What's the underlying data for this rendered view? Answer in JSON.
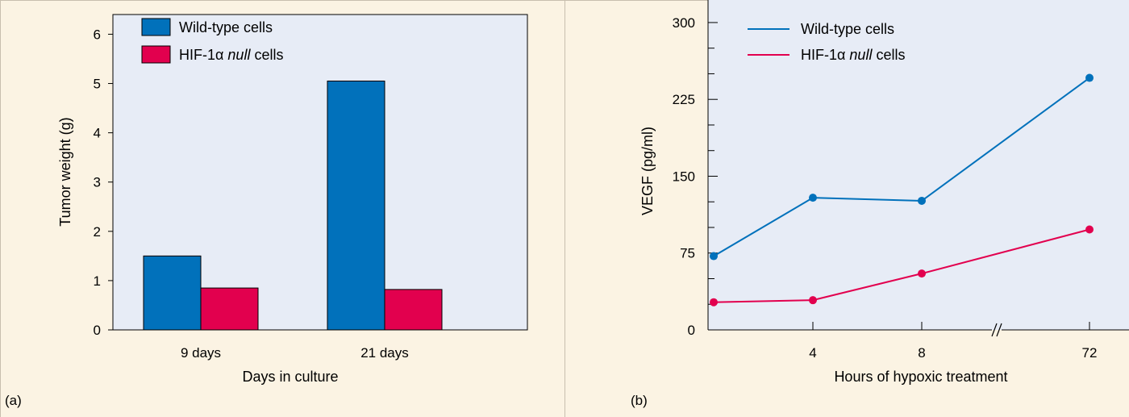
{
  "chart_data": [
    {
      "type": "bar",
      "panel_label": "(a)",
      "categories": [
        "9 days",
        "21 days"
      ],
      "series": [
        {
          "name": "Wild-type cells",
          "values": [
            1.5,
            5.05
          ]
        },
        {
          "name_parts": [
            "HIF-1α ",
            "null",
            " cells"
          ],
          "values": [
            0.85,
            0.82
          ]
        }
      ],
      "xlabel": "Days in culture",
      "ylabel": "Tumor weight (g)",
      "ylim": [
        0,
        6.4
      ],
      "yticks": [
        "0",
        "1",
        "2",
        "3",
        "4",
        "5",
        "6"
      ],
      "legend_position": "top-left",
      "colors": [
        "#0171bb",
        "#e2004e"
      ],
      "plot_background": "#e7ecf6"
    },
    {
      "type": "line",
      "panel_label": "(b)",
      "x": [
        "0",
        "4",
        "8",
        "72"
      ],
      "xticks": [
        "4",
        "8",
        "72"
      ],
      "series": [
        {
          "name": "Wild-type cells",
          "values": [
            72,
            129,
            126,
            246
          ]
        },
        {
          "name_parts": [
            "HIF-1α ",
            "null",
            " cells"
          ],
          "values": [
            27,
            29,
            55,
            98
          ]
        }
      ],
      "xlabel": "Hours of hypoxic treatment",
      "ylabel": "VEGF (pg/ml)",
      "ylim": [
        0,
        322
      ],
      "yticks": [
        "0",
        "75",
        "150",
        "225",
        "300"
      ],
      "axis_break": "between 8 and 72",
      "legend_position": "top-left",
      "colors": [
        "#0171bb",
        "#e2004e"
      ],
      "plot_background": "#e7ecf6"
    }
  ]
}
